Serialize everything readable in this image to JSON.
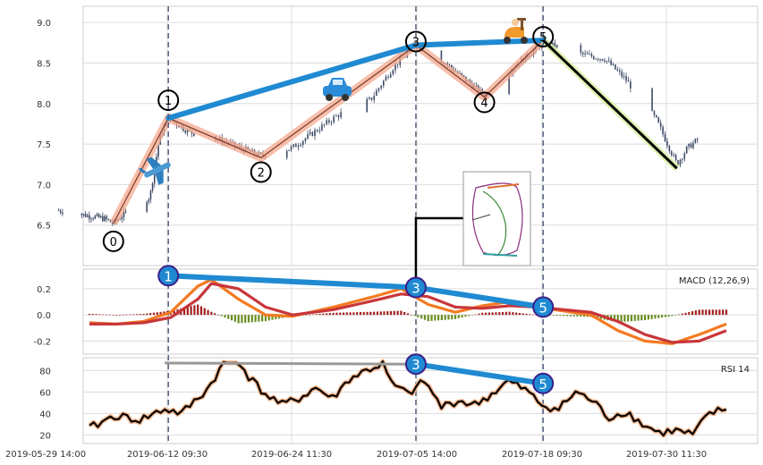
{
  "chart_data": [
    {
      "type": "candlestick",
      "panel": "price",
      "x_ticks": [
        "2019-05-29 14:00",
        "2019-06-12 09:30",
        "2019-06-24 11:30",
        "2019-07-05 14:00",
        "2019-07-18 09:30",
        "2019-07-30 11:30"
      ],
      "y_ticks": [
        "6.5",
        "7.0",
        "7.5",
        "8.0",
        "8.5",
        "9.0"
      ],
      "ylim": [
        6.0,
        9.2
      ],
      "grid": true,
      "price_path": [
        {
          "date": "2019-05-31",
          "value": 6.68
        },
        {
          "date": "2019-06-03",
          "value": 6.62
        },
        {
          "date": "2019-06-05",
          "value": 6.58
        },
        {
          "date": "2019-06-06",
          "value": 6.52
        },
        {
          "date": "2019-06-07",
          "value": 6.62
        },
        {
          "date": "2019-06-10",
          "value": 6.85
        },
        {
          "date": "2019-06-11",
          "value": 7.55
        },
        {
          "date": "2019-06-12",
          "value": 7.82
        },
        {
          "date": "2019-06-14",
          "value": 7.65
        },
        {
          "date": "2019-06-17",
          "value": 7.55
        },
        {
          "date": "2019-06-19",
          "value": 7.45
        },
        {
          "date": "2019-06-21",
          "value": 7.35
        },
        {
          "date": "2019-06-24",
          "value": 7.45
        },
        {
          "date": "2019-06-26",
          "value": 7.65
        },
        {
          "date": "2019-06-28",
          "value": 7.85
        },
        {
          "date": "2019-07-01",
          "value": 8.05
        },
        {
          "date": "2019-07-03",
          "value": 8.45
        },
        {
          "date": "2019-07-05",
          "value": 8.72
        },
        {
          "date": "2019-07-08",
          "value": 8.5
        },
        {
          "date": "2019-07-10",
          "value": 8.3
        },
        {
          "date": "2019-07-12",
          "value": 8.1
        },
        {
          "date": "2019-07-15",
          "value": 8.45
        },
        {
          "date": "2019-07-18",
          "value": 8.75
        },
        {
          "date": "2019-07-22",
          "value": 8.6
        },
        {
          "date": "2019-07-24",
          "value": 8.55
        },
        {
          "date": "2019-07-26",
          "value": 8.3
        },
        {
          "date": "2019-07-29",
          "value": 7.8
        },
        {
          "date": "2019-07-31",
          "value": 7.25
        },
        {
          "date": "2019-08-01",
          "value": 7.45
        },
        {
          "date": "2019-08-02",
          "value": 7.55
        }
      ],
      "waves": [
        {
          "label": "0",
          "date": "2019-06-06",
          "value": 6.52
        },
        {
          "label": "1",
          "date": "2019-06-12",
          "value": 7.82
        },
        {
          "label": "2",
          "date": "2019-06-21",
          "value": 7.33
        },
        {
          "label": "3",
          "date": "2019-07-05",
          "value": 8.72
        },
        {
          "label": "4",
          "date": "2019-07-12",
          "value": 8.08
        },
        {
          "label": "5",
          "date": "2019-07-18",
          "value": 8.78
        }
      ],
      "vertical_markers": [
        "2019-06-12",
        "2019-07-05",
        "2019-07-18"
      ]
    },
    {
      "type": "line",
      "panel": "macd",
      "label": "MACD (12,26,9)",
      "y_ticks": [
        "-0.2",
        "0.0",
        "0.2"
      ],
      "ylim": [
        -0.3,
        0.35
      ],
      "series": [
        {
          "name": "macd",
          "color": "#f47a20",
          "points": [
            [
              0,
              -0.06
            ],
            [
              4,
              -0.07
            ],
            [
              8,
              -0.05
            ],
            [
              12,
              0.02
            ],
            [
              16,
              0.22
            ],
            [
              18,
              0.27
            ],
            [
              22,
              0.12
            ],
            [
              26,
              0.0
            ],
            [
              30,
              -0.01
            ],
            [
              36,
              0.06
            ],
            [
              42,
              0.14
            ],
            [
              46,
              0.2
            ],
            [
              50,
              0.08
            ],
            [
              54,
              0.02
            ],
            [
              58,
              0.07
            ],
            [
              62,
              0.1
            ],
            [
              66,
              0.06
            ],
            [
              70,
              0.03
            ],
            [
              74,
              0.0
            ],
            [
              78,
              -0.12
            ],
            [
              82,
              -0.2
            ],
            [
              86,
              -0.22
            ],
            [
              90,
              -0.15
            ],
            [
              94,
              -0.07
            ]
          ]
        },
        {
          "name": "signal",
          "color": "#c8363a",
          "points": [
            [
              0,
              -0.07
            ],
            [
              4,
              -0.07
            ],
            [
              8,
              -0.06
            ],
            [
              12,
              -0.02
            ],
            [
              16,
              0.12
            ],
            [
              18,
              0.24
            ],
            [
              22,
              0.2
            ],
            [
              26,
              0.06
            ],
            [
              30,
              0.0
            ],
            [
              36,
              0.04
            ],
            [
              42,
              0.11
            ],
            [
              46,
              0.16
            ],
            [
              50,
              0.14
            ],
            [
              54,
              0.06
            ],
            [
              58,
              0.05
            ],
            [
              62,
              0.07
            ],
            [
              66,
              0.06
            ],
            [
              70,
              0.04
            ],
            [
              74,
              0.02
            ],
            [
              78,
              -0.05
            ],
            [
              82,
              -0.15
            ],
            [
              86,
              -0.21
            ],
            [
              90,
              -0.2
            ],
            [
              94,
              -0.12
            ]
          ]
        }
      ],
      "divergence_points": [
        {
          "label": "1",
          "date": "2019-06-12",
          "value": 0.3
        },
        {
          "label": "3",
          "date": "2019-07-05",
          "value": 0.21
        },
        {
          "label": "5",
          "date": "2019-07-18",
          "value": 0.06
        }
      ]
    },
    {
      "type": "line",
      "panel": "rsi",
      "label": "RSI 14",
      "y_ticks": [
        "20",
        "40",
        "60",
        "80"
      ],
      "ylim": [
        12,
        92
      ],
      "divergence_points": [
        {
          "label": "3",
          "date": "2019-07-05",
          "value": 86
        },
        {
          "label": "5",
          "date": "2019-07-18",
          "value": 68
        }
      ]
    }
  ]
}
